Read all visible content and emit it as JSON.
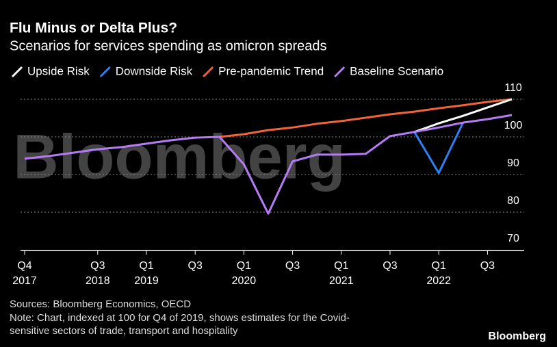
{
  "chart_data": {
    "type": "line",
    "title": "Flu Minus or Delta Plus?",
    "subtitle": "Scenarios for services spending as omicron spreads",
    "watermark": "Bloomberg",
    "categories": [
      "Q4",
      null,
      null,
      "Q3",
      null,
      "Q1",
      null,
      "Q3",
      null,
      "Q1",
      null,
      "Q3",
      null,
      "Q1",
      null,
      "Q3",
      null,
      "Q1",
      null,
      "Q3",
      null
    ],
    "year_labels": [
      "2017",
      null,
      null,
      "2018",
      null,
      "2019",
      null,
      null,
      null,
      "2020",
      null,
      null,
      null,
      "2021",
      null,
      null,
      null,
      "2022",
      null,
      null,
      null
    ],
    "series": [
      {
        "name": "Upside Risk",
        "color": "#ffffff",
        "values": [
          null,
          null,
          null,
          null,
          null,
          null,
          null,
          null,
          null,
          null,
          null,
          null,
          null,
          null,
          null,
          null,
          101.3,
          103.6,
          105.6,
          107.8,
          110
        ]
      },
      {
        "name": "Downside Risk",
        "color": "#2f7ff5",
        "values": [
          null,
          null,
          null,
          null,
          null,
          null,
          null,
          null,
          null,
          null,
          null,
          null,
          null,
          null,
          null,
          null,
          101.3,
          90.4,
          103.8,
          null,
          null
        ]
      },
      {
        "name": "Pre-pandemic Trend",
        "color": "#f2643a",
        "values": [
          null,
          null,
          null,
          null,
          null,
          null,
          null,
          null,
          100,
          100.7,
          101.8,
          102.5,
          103.5,
          104.2,
          105.1,
          106,
          106.7,
          107.6,
          108.4,
          109.3,
          110
        ]
      },
      {
        "name": "Baseline Scenario",
        "color": "#b57cf5",
        "values": [
          94.2,
          94.9,
          95.8,
          96.7,
          97.3,
          98.2,
          99.1,
          99.8,
          100,
          92.7,
          79.6,
          93.5,
          95.3,
          95.3,
          95.5,
          100.2,
          101.3,
          102.5,
          103.8,
          104.7,
          105.8
        ]
      }
    ],
    "ylim": [
      70,
      110
    ],
    "yticks": [
      70,
      80,
      90,
      100,
      110
    ],
    "grid": true,
    "source": "Sources: Bloomberg Economics, OECD",
    "note_lines": [
      "Note: Chart, indexed at 100 for Q4 of 2019, shows estimates for the Covid-",
      "sensitive sectors of trade, transport and hospitality"
    ],
    "logo": "Bloomberg"
  }
}
